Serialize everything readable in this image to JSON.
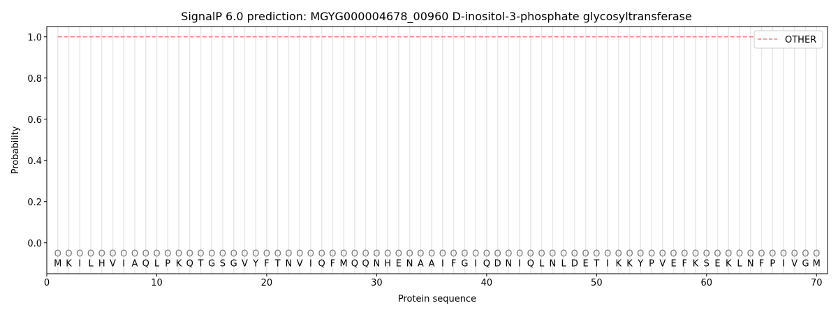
{
  "chart_data": {
    "type": "line",
    "title": "SignalP 6.0 prediction: MGYG000004678_00960 D-inositol-3-phosphate glycosyltransferase",
    "xlabel": "Protein sequence",
    "ylabel": "Probability",
    "xlim": [
      0,
      71
    ],
    "ylim": [
      -0.15,
      1.05
    ],
    "xticks": [
      0,
      10,
      20,
      30,
      40,
      50,
      60,
      70
    ],
    "yticks": [
      "0.0",
      "0.2",
      "0.4",
      "0.6",
      "0.8",
      "1.0"
    ],
    "grid": "vertical lines at each residue",
    "legend_position": "top-right",
    "sequence": [
      "M",
      "K",
      "I",
      "L",
      "H",
      "V",
      "I",
      "A",
      "Q",
      "L",
      "P",
      "K",
      "Q",
      "T",
      "G",
      "S",
      "G",
      "V",
      "Y",
      "F",
      "T",
      "N",
      "V",
      "I",
      "Q",
      "F",
      "M",
      "Q",
      "Q",
      "N",
      "H",
      "E",
      "N",
      "A",
      "A",
      "I",
      "F",
      "G",
      "I",
      "Q",
      "D",
      "N",
      "I",
      "Q",
      "L",
      "N",
      "L",
      "D",
      "E",
      "T",
      "I",
      "K",
      "K",
      "Y",
      "P",
      "V",
      "E",
      "F",
      "K",
      "S",
      "E",
      "K",
      "L",
      "N",
      "F",
      "P",
      "I",
      "V",
      "G",
      "M"
    ],
    "predicted_labels": "OOOOOOOOOOOOOOOOOOOOOOOOOOOOOOOOOOOOOOOOOOOOOOOOOOOOOOOOOOOOOOOOOOOOOO",
    "series": [
      {
        "name": "OTHER",
        "color": "#f08080",
        "style": "dashed",
        "x_range": [
          1,
          70
        ],
        "value": 1.0
      }
    ]
  }
}
